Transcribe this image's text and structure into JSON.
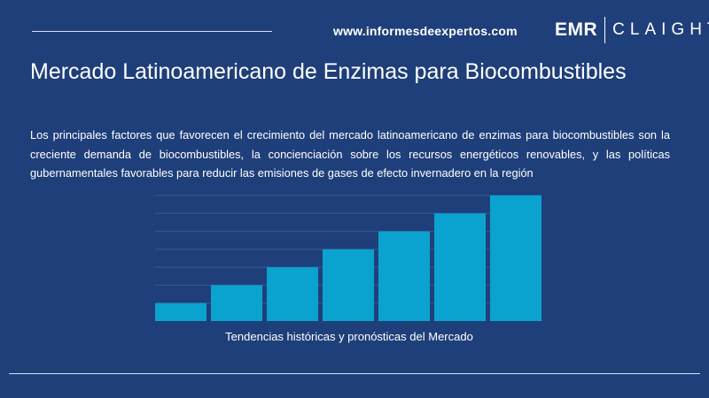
{
  "header": {
    "url": "www.informesdeexpertos.com",
    "logo_left": "EMR",
    "logo_right": "CLAIGHT"
  },
  "title": "Mercado Latinoamericano de Enzimas para Biocombustibles",
  "description": "Los principales factores que favorecen el crecimiento del mercado latinoamericano de enzimas para biocombustibles son la creciente demanda de biocombustibles, la concienciación sobre los recursos energéticos renovables, y las políticas gubernamentales favorables para reducir las emisiones de gases de efecto invernadero en la región",
  "colors": {
    "background": "#1f3f7a",
    "bar": "#0aa3cf",
    "gridline": "#3b5a92"
  },
  "chart_data": {
    "type": "bar",
    "categories": [
      "",
      "",
      "",
      "",
      "",
      "",
      ""
    ],
    "values": [
      1,
      2,
      3,
      4,
      5,
      6,
      7
    ],
    "xlabel": "Tendencias históricas y pronósticas del Mercado",
    "ylabel": "",
    "ylim": [
      0,
      7
    ],
    "grid": true
  }
}
